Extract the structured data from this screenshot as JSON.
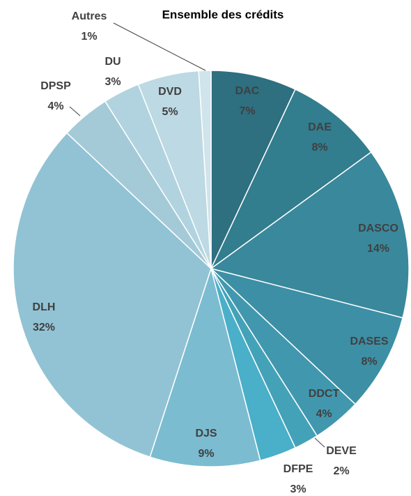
{
  "chart_data": {
    "type": "pie",
    "title": "Ensemble des crédits",
    "categories": [
      "DAC",
      "DAE",
      "DASCO",
      "DASES",
      "DDCT",
      "DEVE",
      "DFPE",
      "DJS",
      "DLH",
      "DPSP",
      "DU",
      "DVD",
      "Autres"
    ],
    "values": [
      7,
      8,
      14,
      8,
      4,
      2,
      3,
      9,
      32,
      4,
      3,
      5,
      1
    ],
    "value_labels": [
      "7%",
      "8%",
      "14%",
      "8%",
      "4%",
      "2%",
      "3%",
      "9%",
      "32%",
      "4%",
      "3%",
      "5%",
      "1%"
    ],
    "colors": [
      "#2e6f80",
      "#327d8e",
      "#3a889c",
      "#3d8fa5",
      "#4198ae",
      "#44a2b8",
      "#4aafc8",
      "#7bbcd0",
      "#92c3d4",
      "#a4cad8",
      "#b1d3df",
      "#bdd9e3",
      "#cfe4eb"
    ]
  }
}
